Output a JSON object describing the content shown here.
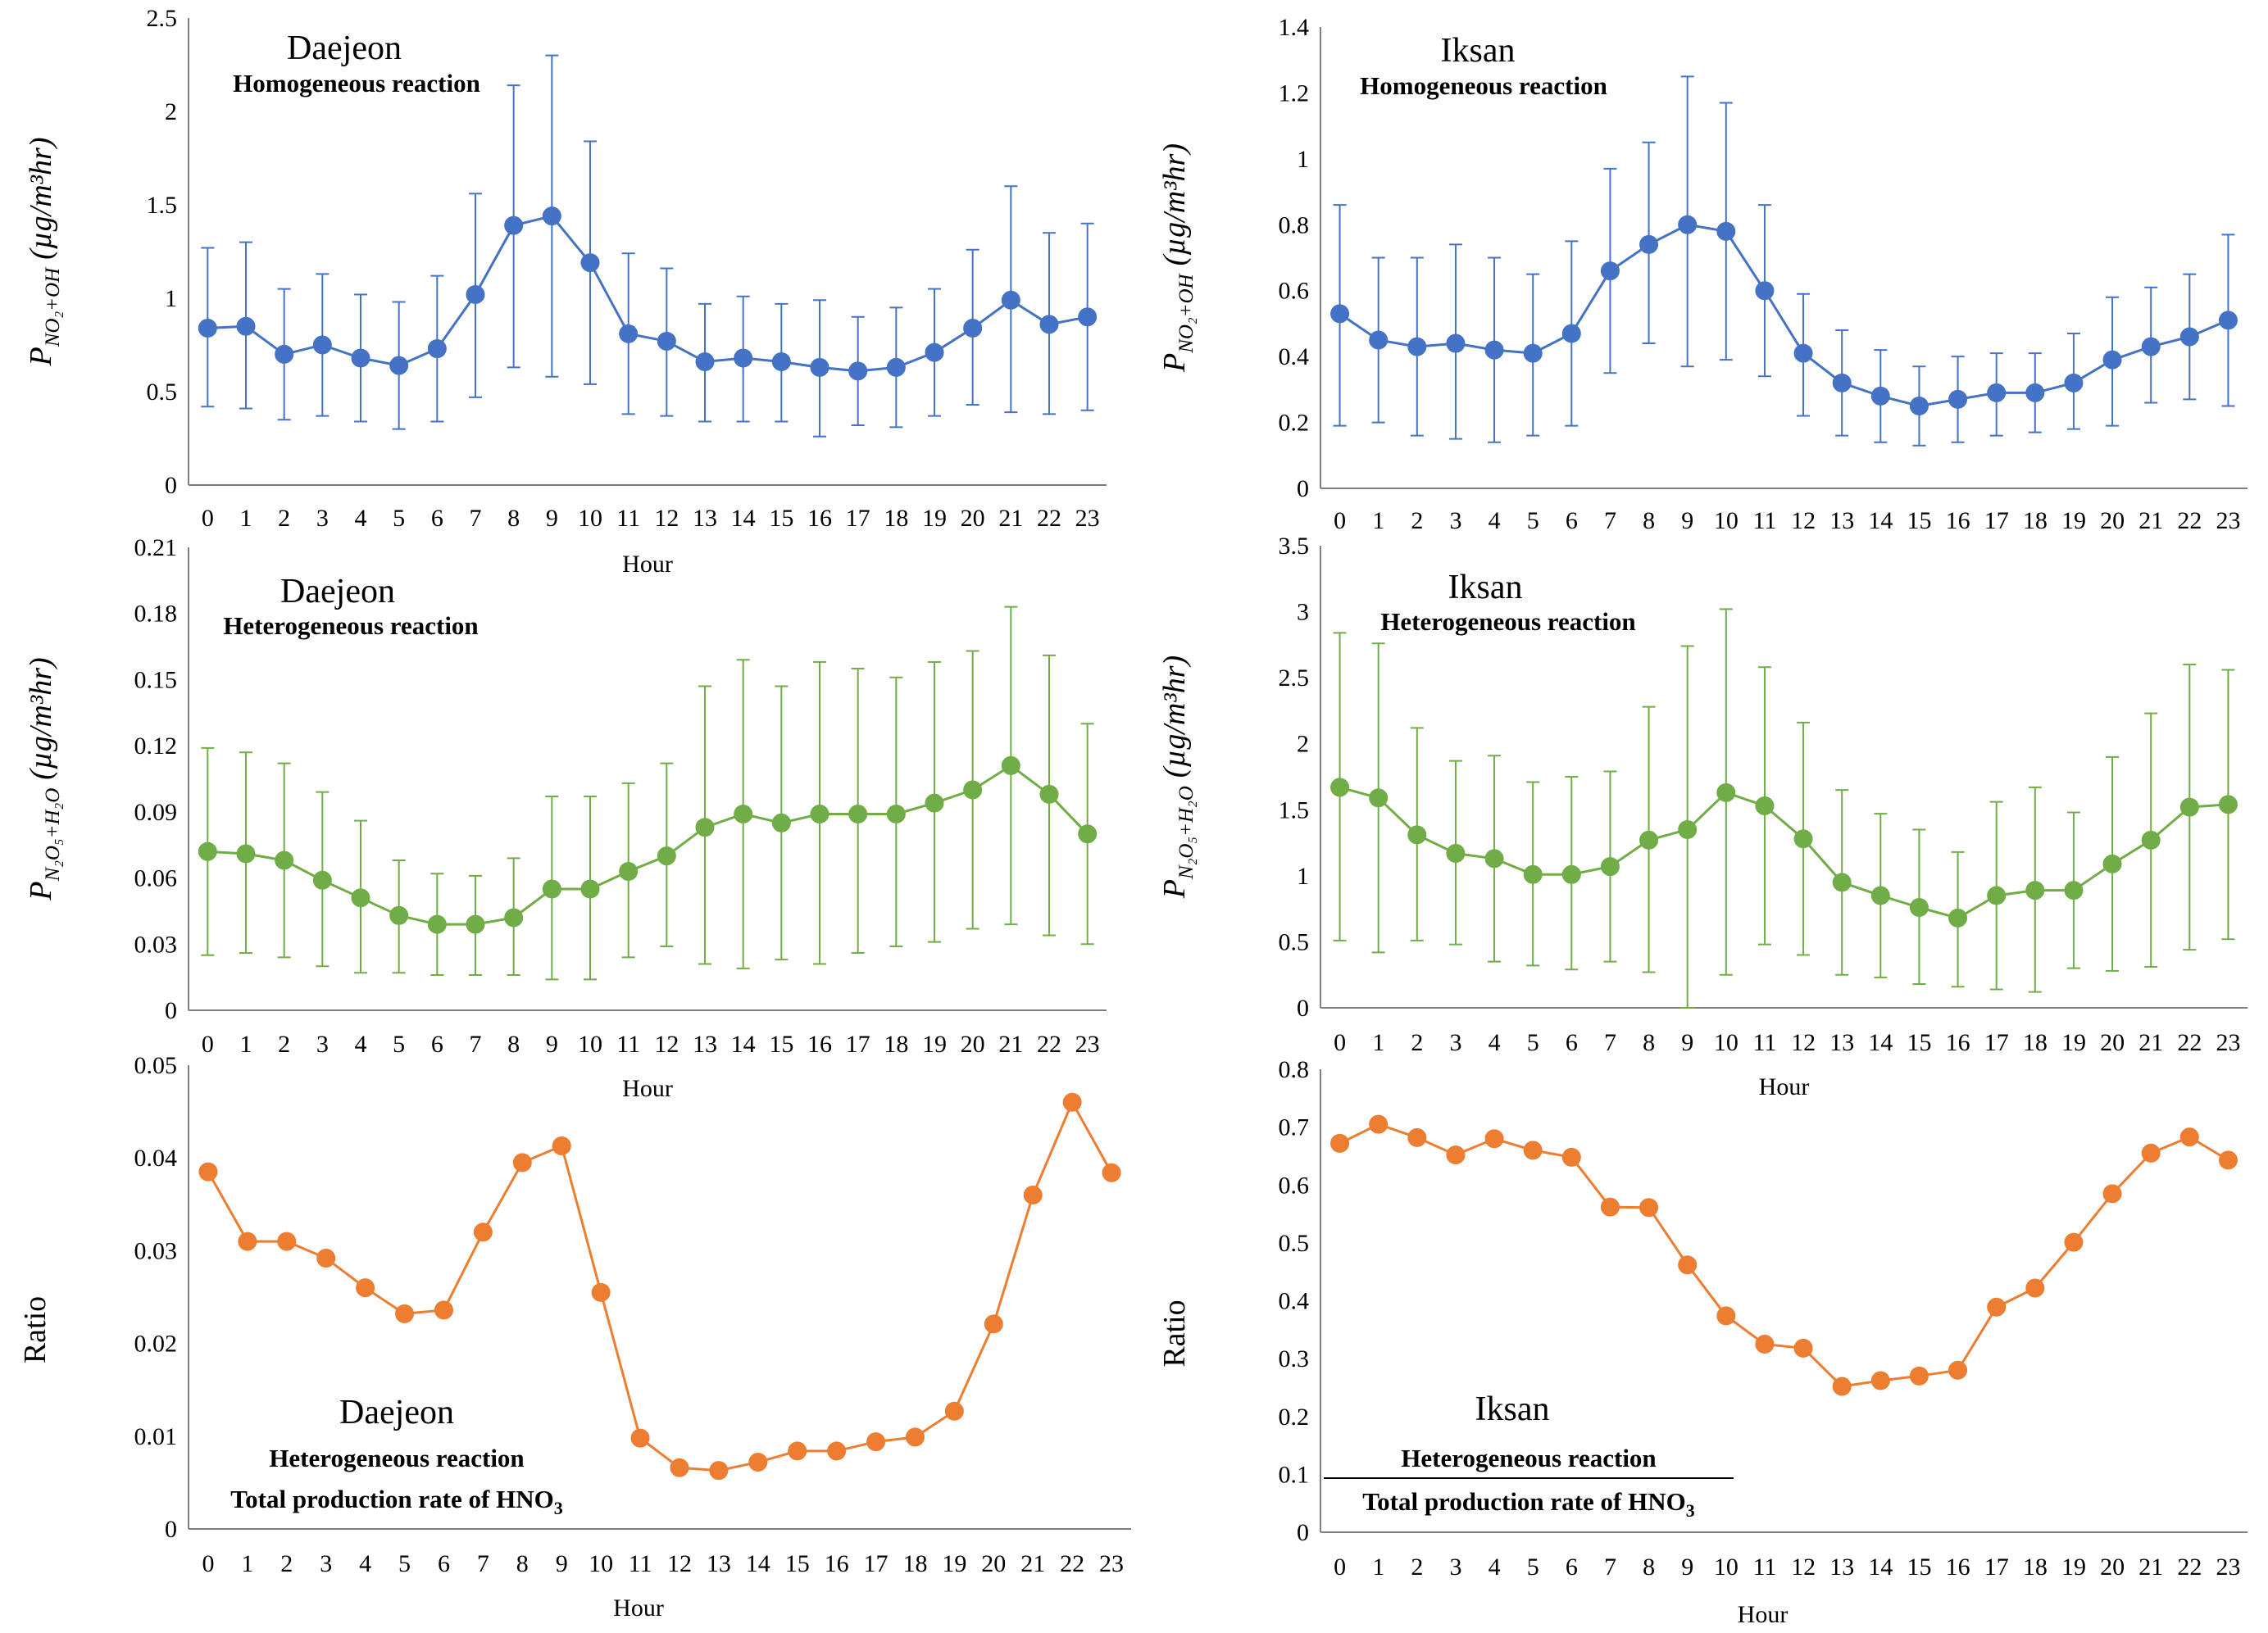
{
  "chart_data": [
    {
      "id": "daejeon-homo",
      "type": "line",
      "color": "#4472C4",
      "city": "Daejeon",
      "reaction": "Homogeneous reaction",
      "ylabel_main": "P",
      "ylabel_sub": "NO₂+OH",
      "ylabel_units": "(µg/m³hr)",
      "xlabel": "Hour",
      "ylim": [
        0,
        2.5
      ],
      "yticks": [
        "0",
        "0.5",
        "1",
        "1.5",
        "2",
        "2.5"
      ],
      "x": [
        "0",
        "1",
        "2",
        "3",
        "4",
        "5",
        "6",
        "7",
        "8",
        "9",
        "10",
        "11",
        "12",
        "13",
        "14",
        "15",
        "16",
        "17",
        "18",
        "19",
        "20",
        "21",
        "22",
        "23"
      ],
      "values": [
        0.84,
        0.85,
        0.7,
        0.75,
        0.68,
        0.64,
        0.73,
        1.02,
        1.39,
        1.44,
        1.19,
        0.81,
        0.77,
        0.66,
        0.68,
        0.66,
        0.63,
        0.61,
        0.63,
        0.71,
        0.84,
        0.99,
        0.86,
        0.9
      ],
      "err_high": [
        1.27,
        1.3,
        1.05,
        1.13,
        1.02,
        0.98,
        1.12,
        1.56,
        2.14,
        2.3,
        1.84,
        1.24,
        1.16,
        0.97,
        1.01,
        0.97,
        0.99,
        0.9,
        0.95,
        1.05,
        1.26,
        1.6,
        1.35,
        1.4
      ],
      "err_low": [
        0.42,
        0.41,
        0.35,
        0.37,
        0.34,
        0.3,
        0.34,
        0.47,
        0.63,
        0.58,
        0.54,
        0.38,
        0.37,
        0.34,
        0.34,
        0.34,
        0.26,
        0.32,
        0.31,
        0.37,
        0.43,
        0.39,
        0.38,
        0.4
      ]
    },
    {
      "id": "iksan-homo",
      "type": "line",
      "color": "#4472C4",
      "city": "Iksan",
      "reaction": "Homogeneous reaction",
      "ylabel_main": "P",
      "ylabel_sub": "NO₂+OH",
      "ylabel_units": "(µg/m³hr)",
      "xlabel": "",
      "ylim": [
        0,
        1.4
      ],
      "yticks": [
        "0",
        "0.2",
        "0.4",
        "0.6",
        "0.8",
        "1",
        "1.2",
        "1.4"
      ],
      "x": [
        "0",
        "1",
        "2",
        "3",
        "4",
        "5",
        "6",
        "7",
        "8",
        "9",
        "10",
        "11",
        "12",
        "13",
        "14",
        "15",
        "16",
        "17",
        "18",
        "19",
        "20",
        "21",
        "22",
        "23"
      ],
      "values": [
        0.53,
        0.45,
        0.43,
        0.44,
        0.42,
        0.41,
        0.47,
        0.66,
        0.74,
        0.8,
        0.78,
        0.6,
        0.41,
        0.32,
        0.28,
        0.25,
        0.27,
        0.29,
        0.29,
        0.32,
        0.39,
        0.43,
        0.46,
        0.51
      ],
      "err_high": [
        0.86,
        0.7,
        0.7,
        0.74,
        0.7,
        0.65,
        0.75,
        0.97,
        1.05,
        1.25,
        1.17,
        0.86,
        0.59,
        0.48,
        0.42,
        0.37,
        0.4,
        0.41,
        0.41,
        0.47,
        0.58,
        0.61,
        0.65,
        0.77
      ],
      "err_low": [
        0.19,
        0.2,
        0.16,
        0.15,
        0.14,
        0.16,
        0.19,
        0.35,
        0.44,
        0.37,
        0.39,
        0.34,
        0.22,
        0.16,
        0.14,
        0.13,
        0.14,
        0.16,
        0.17,
        0.18,
        0.19,
        0.26,
        0.27,
        0.25
      ]
    },
    {
      "id": "daejeon-hetero",
      "type": "line",
      "color": "#70AD47",
      "city": "Daejeon",
      "reaction": "Heterogeneous reaction",
      "ylabel_main": "P",
      "ylabel_sub": "N₂O₅+H₂O",
      "ylabel_units": "(µg/m³hr)",
      "xlabel": "Hour",
      "ylim": [
        0,
        0.21
      ],
      "yticks": [
        "0",
        "0.03",
        "0.06",
        "0.09",
        "0.12",
        "0.15",
        "0.18",
        "0.21"
      ],
      "x": [
        "0",
        "1",
        "2",
        "3",
        "4",
        "5",
        "6",
        "7",
        "8",
        "9",
        "10",
        "11",
        "12",
        "13",
        "14",
        "15",
        "16",
        "17",
        "18",
        "19",
        "20",
        "21",
        "22",
        "23"
      ],
      "values": [
        0.072,
        0.071,
        0.068,
        0.059,
        0.051,
        0.043,
        0.039,
        0.039,
        0.042,
        0.055,
        0.055,
        0.063,
        0.07,
        0.083,
        0.089,
        0.085,
        0.089,
        0.089,
        0.089,
        0.094,
        0.1,
        0.111,
        0.098,
        0.08
      ],
      "err_high": [
        0.119,
        0.117,
        0.112,
        0.099,
        0.086,
        0.068,
        0.062,
        0.061,
        0.069,
        0.097,
        0.097,
        0.103,
        0.112,
        0.147,
        0.159,
        0.147,
        0.158,
        0.155,
        0.151,
        0.158,
        0.163,
        0.183,
        0.161,
        0.13
      ],
      "err_low": [
        0.025,
        0.026,
        0.024,
        0.02,
        0.017,
        0.017,
        0.016,
        0.016,
        0.016,
        0.014,
        0.014,
        0.024,
        0.029,
        0.021,
        0.019,
        0.023,
        0.021,
        0.026,
        0.029,
        0.031,
        0.037,
        0.039,
        0.034,
        0.03
      ]
    },
    {
      "id": "iksan-hetero",
      "type": "line",
      "color": "#70AD47",
      "city": "Iksan",
      "reaction": "Heterogeneous reaction",
      "ylabel_main": "P",
      "ylabel_sub": "N₂O₅+H₂O",
      "ylabel_units": "(µg/m³hr)",
      "xlabel": "Hour",
      "ylim": [
        0,
        3.5
      ],
      "yticks": [
        "0",
        "0.5",
        "1",
        "1.5",
        "2",
        "2.5",
        "3",
        "3.5"
      ],
      "x": [
        "0",
        "1",
        "2",
        "3",
        "4",
        "5",
        "6",
        "7",
        "8",
        "9",
        "10",
        "11",
        "12",
        "13",
        "14",
        "15",
        "16",
        "17",
        "18",
        "19",
        "20",
        "21",
        "22",
        "23"
      ],
      "values": [
        1.67,
        1.59,
        1.31,
        1.17,
        1.13,
        1.01,
        1.01,
        1.07,
        1.27,
        1.35,
        1.63,
        1.53,
        1.28,
        0.95,
        0.85,
        0.76,
        0.68,
        0.85,
        0.89,
        0.89,
        1.09,
        1.27,
        1.52,
        1.54
      ],
      "err_high": [
        2.84,
        2.76,
        2.12,
        1.87,
        1.91,
        1.71,
        1.75,
        1.79,
        2.28,
        2.74,
        3.02,
        2.58,
        2.16,
        1.65,
        1.47,
        1.35,
        1.18,
        1.56,
        1.67,
        1.48,
        1.9,
        2.23,
        2.6,
        2.56
      ],
      "err_low": [
        0.51,
        0.42,
        0.51,
        0.48,
        0.35,
        0.32,
        0.29,
        0.35,
        0.27,
        0.0,
        0.25,
        0.48,
        0.4,
        0.25,
        0.23,
        0.18,
        0.16,
        0.14,
        0.12,
        0.3,
        0.28,
        0.31,
        0.44,
        0.52
      ]
    },
    {
      "id": "daejeon-ratio",
      "type": "line",
      "color": "#ED7D31",
      "city": "Daejeon",
      "reaction": "Heterogeneous reaction",
      "total": "Total production rate of HNO",
      "total_sub": "3",
      "ylabel": "Ratio",
      "xlabel": "Hour",
      "ylim": [
        0,
        0.05
      ],
      "yticks": [
        "0",
        "0.01",
        "0.02",
        "0.03",
        "0.04",
        "0.05"
      ],
      "x": [
        "0",
        "1",
        "2",
        "3",
        "4",
        "5",
        "6",
        "7",
        "8",
        "9",
        "10",
        "11",
        "12",
        "13",
        "14",
        "15",
        "16",
        "17",
        "18",
        "19",
        "20",
        "21",
        "22",
        "23"
      ],
      "values": [
        0.0385,
        0.031,
        0.031,
        0.0292,
        0.026,
        0.0232,
        0.0236,
        0.032,
        0.0395,
        0.0413,
        0.0255,
        0.0098,
        0.0066,
        0.0063,
        0.0072,
        0.0084,
        0.0084,
        0.0094,
        0.0099,
        0.0127,
        0.0221,
        0.036,
        0.046,
        0.0384
      ]
    },
    {
      "id": "iksan-ratio",
      "type": "line",
      "color": "#ED7D31",
      "city": "Iksan",
      "reaction": "Heterogeneous reaction",
      "total": "Total production rate of HNO",
      "total_sub": "3",
      "ylabel": "Ratio",
      "xlabel": "Hour",
      "ylim": [
        0,
        0.8
      ],
      "yticks": [
        "0",
        "0.1",
        "0.2",
        "0.3",
        "0.4",
        "0.5",
        "0.6",
        "0.7",
        "0.8"
      ],
      "x": [
        "0",
        "1",
        "2",
        "3",
        "4",
        "5",
        "6",
        "7",
        "8",
        "9",
        "10",
        "11",
        "12",
        "13",
        "14",
        "15",
        "16",
        "17",
        "18",
        "19",
        "20",
        "21",
        "22",
        "23"
      ],
      "values": [
        0.672,
        0.705,
        0.682,
        0.652,
        0.68,
        0.66,
        0.648,
        0.562,
        0.561,
        0.462,
        0.374,
        0.325,
        0.318,
        0.252,
        0.262,
        0.27,
        0.28,
        0.389,
        0.422,
        0.501,
        0.585,
        0.655,
        0.683,
        0.643
      ]
    }
  ]
}
